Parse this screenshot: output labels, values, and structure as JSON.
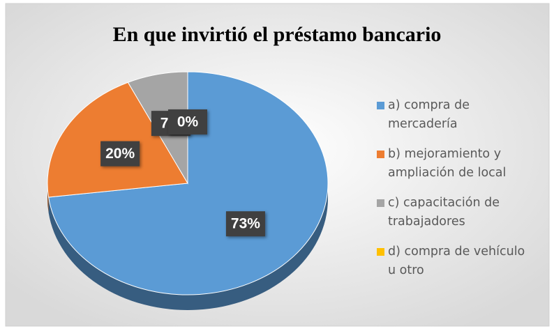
{
  "chart_data": {
    "type": "pie",
    "title": "En que invirtió el préstamo bancario",
    "categories": [
      "a) compra de mercadería",
      "b) mejoramiento y ampliación de local",
      "c) capacitación de trabajadores",
      "d) compra de vehículo u otro"
    ],
    "values": [
      73,
      20,
      7,
      0
    ],
    "value_labels": [
      "73%",
      "20%",
      "7%",
      "0%"
    ],
    "colors": [
      "#5b9bd5",
      "#ed7d31",
      "#a5a5a5",
      "#ffc000"
    ]
  }
}
